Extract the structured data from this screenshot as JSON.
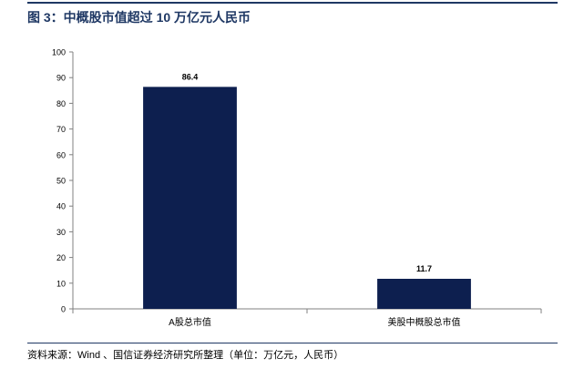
{
  "figure": {
    "title": "图 3：中概股市值超过 10 万亿元人民币",
    "source": "资料来源：Wind 、国信证券经济研究所整理（单位：万亿元，人民币）"
  },
  "chart_data": {
    "type": "bar",
    "categories": [
      "A股总市值",
      "美股中概股总市值"
    ],
    "values": [
      86.4,
      11.7
    ],
    "value_labels": [
      "86.4",
      "11.7"
    ],
    "ylim": [
      0,
      100
    ],
    "yticks": [
      0,
      10,
      20,
      30,
      40,
      50,
      60,
      70,
      80,
      90,
      100
    ],
    "bar_color": "#0d1f4f",
    "grid": false,
    "legend": "none"
  }
}
